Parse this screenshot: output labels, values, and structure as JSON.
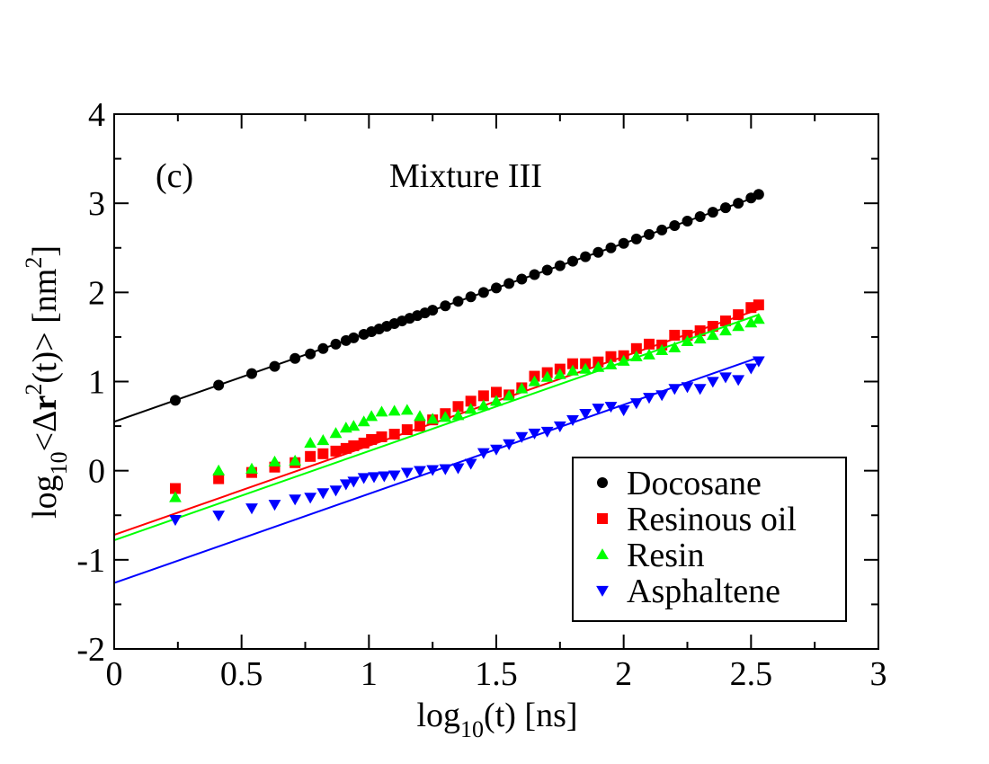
{
  "chart_data": {
    "type": "scatter",
    "title": "Mixture III",
    "panel_label": "(c)",
    "xlabel": {
      "main": "log",
      "sub": "10",
      "rest": "(t) [ns]"
    },
    "ylabel": {
      "main": "log",
      "sub": "10",
      "p1": "<Δ",
      "bold": "r",
      "sup": "2",
      "p2": "(t)> [nm",
      "sup2": "2",
      "p3": "]"
    },
    "xlim": [
      0,
      3
    ],
    "ylim": [
      -2,
      4
    ],
    "xticks": [
      0,
      0.5,
      1,
      1.5,
      2,
      2.5,
      3
    ],
    "xtick_labels": [
      "0",
      "0.5",
      "1",
      "1.5",
      "2",
      "2.5",
      "3"
    ],
    "yticks": [
      -2,
      -1,
      0,
      1,
      2,
      3,
      4
    ],
    "ytick_labels": [
      "-2",
      "-1",
      "0",
      "1",
      "2",
      "3",
      "4"
    ],
    "legend_position": "lower-right",
    "series": [
      {
        "name": "Docosane",
        "color": "#000000",
        "marker": "circle",
        "fit": {
          "intercept": 0.55,
          "slope": 1.0
        },
        "x": [
          0.24,
          0.41,
          0.54,
          0.63,
          0.71,
          0.77,
          0.82,
          0.87,
          0.91,
          0.94,
          0.98,
          1.01,
          1.04,
          1.07,
          1.1,
          1.13,
          1.16,
          1.19,
          1.22,
          1.25,
          1.3,
          1.35,
          1.4,
          1.45,
          1.5,
          1.55,
          1.6,
          1.65,
          1.7,
          1.75,
          1.8,
          1.85,
          1.9,
          1.95,
          2.0,
          2.05,
          2.1,
          2.15,
          2.2,
          2.25,
          2.3,
          2.35,
          2.4,
          2.45,
          2.5,
          2.53
        ],
        "y": [
          0.79,
          0.96,
          1.09,
          1.17,
          1.26,
          1.31,
          1.37,
          1.42,
          1.46,
          1.49,
          1.53,
          1.56,
          1.59,
          1.62,
          1.65,
          1.68,
          1.71,
          1.74,
          1.77,
          1.8,
          1.85,
          1.9,
          1.95,
          2.0,
          2.05,
          2.1,
          2.15,
          2.2,
          2.25,
          2.3,
          2.35,
          2.4,
          2.45,
          2.5,
          2.55,
          2.6,
          2.65,
          2.7,
          2.75,
          2.8,
          2.85,
          2.9,
          2.95,
          3.0,
          3.06,
          3.1
        ]
      },
      {
        "name": "Resinous oil",
        "color": "#ff0000",
        "marker": "square",
        "fit": {
          "intercept": -0.72,
          "slope": 1.0
        },
        "x": [
          0.24,
          0.41,
          0.54,
          0.63,
          0.71,
          0.77,
          0.82,
          0.87,
          0.91,
          0.94,
          0.98,
          1.01,
          1.05,
          1.1,
          1.15,
          1.2,
          1.25,
          1.3,
          1.35,
          1.4,
          1.45,
          1.5,
          1.55,
          1.6,
          1.65,
          1.7,
          1.75,
          1.8,
          1.85,
          1.9,
          1.95,
          2.0,
          2.05,
          2.1,
          2.15,
          2.2,
          2.25,
          2.3,
          2.35,
          2.4,
          2.45,
          2.5,
          2.53
        ],
        "y": [
          -0.2,
          -0.09,
          -0.02,
          0.04,
          0.09,
          0.16,
          0.19,
          0.22,
          0.25,
          0.28,
          0.31,
          0.35,
          0.38,
          0.41,
          0.46,
          0.5,
          0.57,
          0.64,
          0.72,
          0.78,
          0.84,
          0.88,
          0.85,
          0.93,
          1.06,
          1.1,
          1.14,
          1.2,
          1.2,
          1.22,
          1.28,
          1.29,
          1.37,
          1.42,
          1.41,
          1.52,
          1.52,
          1.57,
          1.62,
          1.68,
          1.75,
          1.83,
          1.86
        ]
      },
      {
        "name": "Resin",
        "color": "#00ff00",
        "marker": "triangle-up",
        "fit": {
          "intercept": -0.78,
          "slope": 1.0
        },
        "x": [
          0.24,
          0.41,
          0.54,
          0.63,
          0.71,
          0.77,
          0.82,
          0.87,
          0.91,
          0.94,
          0.98,
          1.01,
          1.05,
          1.1,
          1.15,
          1.2,
          1.25,
          1.3,
          1.35,
          1.4,
          1.45,
          1.5,
          1.55,
          1.6,
          1.65,
          1.7,
          1.75,
          1.8,
          1.85,
          1.9,
          1.95,
          2.0,
          2.05,
          2.1,
          2.15,
          2.2,
          2.25,
          2.3,
          2.35,
          2.4,
          2.45,
          2.5,
          2.53
        ],
        "y": [
          -0.3,
          0.0,
          0.02,
          0.1,
          0.11,
          0.31,
          0.34,
          0.42,
          0.48,
          0.5,
          0.55,
          0.61,
          0.66,
          0.67,
          0.68,
          0.61,
          0.58,
          0.6,
          0.62,
          0.69,
          0.73,
          0.78,
          0.84,
          0.92,
          1.0,
          1.05,
          1.08,
          1.12,
          1.14,
          1.16,
          1.19,
          1.23,
          1.28,
          1.3,
          1.35,
          1.38,
          1.45,
          1.48,
          1.52,
          1.57,
          1.62,
          1.66,
          1.7
        ]
      },
      {
        "name": "Asphaltene",
        "color": "#0000ff",
        "marker": "triangle-down",
        "fit": {
          "intercept": -1.26,
          "slope": 1.0
        },
        "x": [
          0.24,
          0.41,
          0.54,
          0.63,
          0.71,
          0.77,
          0.82,
          0.87,
          0.91,
          0.94,
          0.98,
          1.02,
          1.06,
          1.1,
          1.15,
          1.2,
          1.25,
          1.3,
          1.35,
          1.4,
          1.45,
          1.5,
          1.55,
          1.6,
          1.65,
          1.7,
          1.75,
          1.8,
          1.85,
          1.9,
          1.95,
          2.0,
          2.05,
          2.1,
          2.15,
          2.2,
          2.25,
          2.3,
          2.35,
          2.4,
          2.45,
          2.5,
          2.53
        ],
        "y": [
          -0.55,
          -0.5,
          -0.42,
          -0.38,
          -0.32,
          -0.3,
          -0.25,
          -0.22,
          -0.15,
          -0.12,
          -0.08,
          -0.07,
          -0.06,
          -0.05,
          -0.02,
          0.0,
          0.01,
          0.02,
          0.03,
          0.08,
          0.2,
          0.24,
          0.3,
          0.38,
          0.42,
          0.44,
          0.5,
          0.57,
          0.64,
          0.7,
          0.72,
          0.68,
          0.76,
          0.82,
          0.85,
          0.92,
          0.94,
          0.92,
          1.0,
          1.05,
          1.02,
          1.15,
          1.23
        ]
      }
    ]
  }
}
